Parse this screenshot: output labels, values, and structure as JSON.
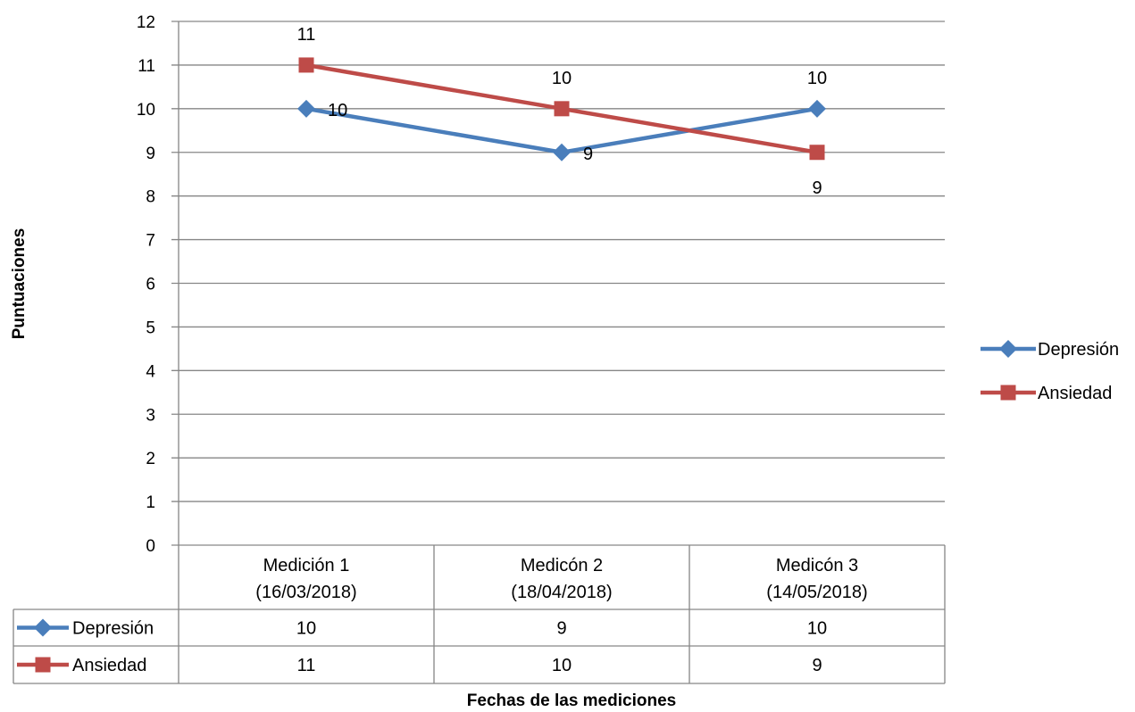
{
  "chart_data": {
    "type": "line",
    "title": "",
    "xlabel": "Fechas de las mediciones",
    "ylabel": "Puntuaciones",
    "ylim": [
      0,
      12
    ],
    "yticks": [
      "0",
      "1",
      "2",
      "3",
      "4",
      "5",
      "6",
      "7",
      "8",
      "9",
      "10",
      "11",
      "12"
    ],
    "grid": true,
    "legend_position": "right",
    "data_table": true,
    "categories": [
      [
        "Medición 1",
        "(16/03/2018)"
      ],
      [
        "Medicón 2",
        "(18/04/2018)"
      ],
      [
        "Medicón 3",
        "(14/05/2018)"
      ]
    ],
    "series": [
      {
        "name": "Depresión",
        "values": [
          10,
          9,
          10
        ],
        "color": "#4A7EBB",
        "marker": "diamond"
      },
      {
        "name": "Ansiedad",
        "values": [
          11,
          10,
          9
        ],
        "color": "#BE4B48",
        "marker": "square"
      }
    ]
  }
}
